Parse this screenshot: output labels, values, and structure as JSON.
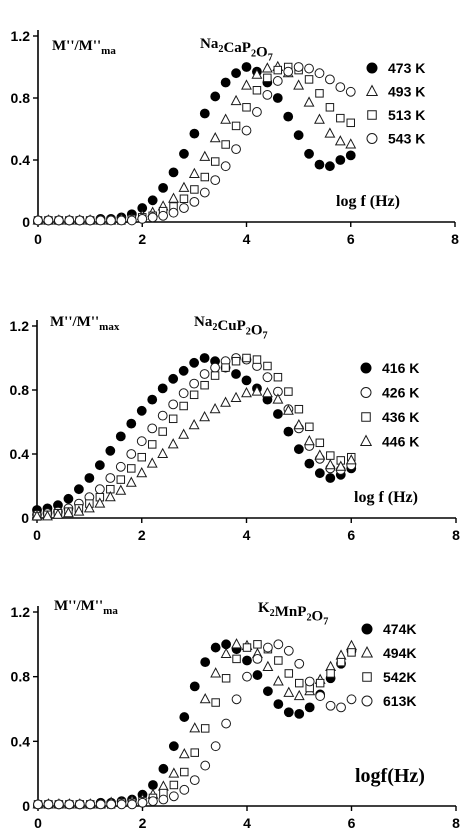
{
  "chart_data": [
    {
      "type": "scatter",
      "title": "Na₂CaP₂O₇",
      "ylabel": "M''/M''ma",
      "xlabel": "log  f (Hz)",
      "xlim": [
        0,
        8
      ],
      "ylim": [
        0,
        1.2
      ],
      "x_ticks": [
        "0",
        "2",
        "4",
        "6",
        "8"
      ],
      "y_ticks": [
        "0",
        "0.4",
        "0.8",
        "1.2"
      ],
      "legend_position": "right",
      "series": [
        {
          "name": "473 K",
          "marker": "filled-circle",
          "x": [
            0,
            0.2,
            0.4,
            0.6,
            0.8,
            1.0,
            1.2,
            1.4,
            1.6,
            1.8,
            2.0,
            2.2,
            2.4,
            2.6,
            2.8,
            3.0,
            3.2,
            3.4,
            3.6,
            3.8,
            4.0,
            4.2,
            4.4,
            4.6,
            4.8,
            5.0,
            5.2,
            5.4,
            5.6,
            5.8,
            6.0
          ],
          "y": [
            0.01,
            0.01,
            0.01,
            0.01,
            0.01,
            0.01,
            0.02,
            0.02,
            0.03,
            0.05,
            0.09,
            0.14,
            0.22,
            0.32,
            0.44,
            0.57,
            0.7,
            0.81,
            0.9,
            0.96,
            1.0,
            0.97,
            0.9,
            0.8,
            0.68,
            0.56,
            0.44,
            0.37,
            0.36,
            0.4,
            0.43
          ]
        },
        {
          "name": "493 K",
          "marker": "open-triangle",
          "x": [
            0,
            0.2,
            0.4,
            0.6,
            0.8,
            1.0,
            1.2,
            1.4,
            1.6,
            1.8,
            2.0,
            2.2,
            2.4,
            2.6,
            2.8,
            3.0,
            3.2,
            3.4,
            3.6,
            3.8,
            4.0,
            4.2,
            4.4,
            4.6,
            4.8,
            5.0,
            5.2,
            5.4,
            5.6,
            5.8,
            6.0
          ],
          "y": [
            0.01,
            0.01,
            0.01,
            0.01,
            0.01,
            0.01,
            0.01,
            0.01,
            0.02,
            0.02,
            0.04,
            0.06,
            0.1,
            0.15,
            0.22,
            0.31,
            0.42,
            0.54,
            0.66,
            0.78,
            0.88,
            0.95,
            0.99,
            1.0,
            0.96,
            0.88,
            0.77,
            0.66,
            0.57,
            0.52,
            0.5
          ]
        },
        {
          "name": "513 K",
          "marker": "open-square",
          "x": [
            0,
            0.2,
            0.4,
            0.6,
            0.8,
            1.0,
            1.2,
            1.4,
            1.6,
            1.8,
            2.0,
            2.2,
            2.4,
            2.6,
            2.8,
            3.0,
            3.2,
            3.4,
            3.6,
            3.8,
            4.0,
            4.2,
            4.4,
            4.6,
            4.8,
            5.0,
            5.2,
            5.4,
            5.6,
            5.8,
            6.0
          ],
          "y": [
            0.01,
            0.01,
            0.01,
            0.01,
            0.01,
            0.01,
            0.01,
            0.01,
            0.01,
            0.02,
            0.03,
            0.04,
            0.07,
            0.1,
            0.15,
            0.21,
            0.29,
            0.39,
            0.5,
            0.62,
            0.74,
            0.85,
            0.93,
            0.98,
            1.0,
            0.98,
            0.92,
            0.83,
            0.74,
            0.67,
            0.64
          ]
        },
        {
          "name": "543 K",
          "marker": "open-circle",
          "x": [
            0,
            0.2,
            0.4,
            0.6,
            0.8,
            1.0,
            1.2,
            1.4,
            1.6,
            1.8,
            2.0,
            2.2,
            2.4,
            2.6,
            2.8,
            3.0,
            3.2,
            3.4,
            3.6,
            3.8,
            4.0,
            4.2,
            4.4,
            4.6,
            4.8,
            5.0,
            5.2,
            5.4,
            5.6,
            5.8,
            6.0
          ],
          "y": [
            0.01,
            0.01,
            0.01,
            0.01,
            0.01,
            0.01,
            0.01,
            0.01,
            0.01,
            0.01,
            0.02,
            0.03,
            0.04,
            0.06,
            0.09,
            0.13,
            0.19,
            0.27,
            0.36,
            0.47,
            0.59,
            0.71,
            0.82,
            0.91,
            0.97,
            1.0,
            0.99,
            0.96,
            0.92,
            0.87,
            0.84
          ]
        }
      ]
    },
    {
      "type": "scatter",
      "title": "Na₂CuP₂O₇",
      "ylabel": "M''/M''max",
      "xlabel": "log f (Hz)",
      "xlim": [
        0,
        8
      ],
      "ylim": [
        0,
        1.2
      ],
      "x_ticks": [
        "0",
        "2",
        "4",
        "6",
        "8"
      ],
      "y_ticks": [
        "0",
        "0.4",
        "0.8",
        "1.2"
      ],
      "legend_position": "right",
      "series": [
        {
          "name": "416 K",
          "marker": "filled-circle",
          "x": [
            0,
            0.2,
            0.4,
            0.6,
            0.8,
            1.0,
            1.2,
            1.4,
            1.6,
            1.8,
            2.0,
            2.2,
            2.4,
            2.6,
            2.8,
            3.0,
            3.2,
            3.4,
            3.6,
            3.8,
            4.0,
            4.2,
            4.4,
            4.6,
            4.8,
            5.0,
            5.2,
            5.4,
            5.6,
            5.8,
            6.0
          ],
          "y": [
            0.05,
            0.06,
            0.08,
            0.12,
            0.18,
            0.25,
            0.33,
            0.42,
            0.51,
            0.59,
            0.67,
            0.74,
            0.81,
            0.87,
            0.92,
            0.97,
            1.0,
            0.98,
            0.94,
            0.9,
            0.86,
            0.81,
            0.74,
            0.65,
            0.54,
            0.43,
            0.34,
            0.28,
            0.25,
            0.27,
            0.31
          ]
        },
        {
          "name": "426 K",
          "marker": "open-circle",
          "x": [
            0,
            0.2,
            0.4,
            0.6,
            0.8,
            1.0,
            1.2,
            1.4,
            1.6,
            1.8,
            2.0,
            2.2,
            2.4,
            2.6,
            2.8,
            3.0,
            3.2,
            3.4,
            3.6,
            3.8,
            4.0,
            4.2,
            4.4,
            4.6,
            4.8,
            5.0,
            5.2,
            5.4,
            5.6,
            5.8,
            6.0
          ],
          "y": [
            0.02,
            0.03,
            0.04,
            0.06,
            0.09,
            0.13,
            0.18,
            0.25,
            0.32,
            0.4,
            0.48,
            0.56,
            0.64,
            0.71,
            0.78,
            0.84,
            0.9,
            0.94,
            0.98,
            1.0,
            0.99,
            0.95,
            0.88,
            0.79,
            0.68,
            0.56,
            0.45,
            0.37,
            0.31,
            0.3,
            0.33
          ]
        },
        {
          "name": "436 K",
          "marker": "open-square",
          "x": [
            0,
            0.2,
            0.4,
            0.6,
            0.8,
            1.0,
            1.2,
            1.4,
            1.6,
            1.8,
            2.0,
            2.2,
            2.4,
            2.6,
            2.8,
            3.0,
            3.2,
            3.4,
            3.6,
            3.8,
            4.0,
            4.2,
            4.4,
            4.6,
            4.8,
            5.0,
            5.2,
            5.4,
            5.6,
            5.8,
            6.0
          ],
          "y": [
            0.01,
            0.02,
            0.03,
            0.04,
            0.06,
            0.09,
            0.13,
            0.18,
            0.24,
            0.31,
            0.38,
            0.46,
            0.54,
            0.62,
            0.7,
            0.77,
            0.83,
            0.89,
            0.94,
            0.98,
            1.0,
            0.99,
            0.95,
            0.88,
            0.79,
            0.68,
            0.57,
            0.47,
            0.39,
            0.36,
            0.38
          ]
        },
        {
          "name": "446 K",
          "marker": "open-triangle",
          "x": [
            0,
            0.2,
            0.4,
            0.6,
            0.8,
            1.0,
            1.2,
            1.4,
            1.6,
            1.8,
            2.0,
            2.2,
            2.4,
            2.6,
            2.8,
            3.0,
            3.2,
            3.4,
            3.6,
            3.8,
            4.0,
            4.2,
            4.4,
            4.6,
            4.8,
            5.0,
            5.2,
            5.4,
            5.6,
            5.8,
            6.0
          ],
          "y": [
            0.01,
            0.01,
            0.02,
            0.03,
            0.04,
            0.06,
            0.09,
            0.13,
            0.17,
            0.22,
            0.28,
            0.34,
            0.4,
            0.46,
            0.52,
            0.58,
            0.63,
            0.68,
            0.72,
            0.75,
            0.78,
            0.79,
            0.78,
            0.74,
            0.67,
            0.58,
            0.48,
            0.39,
            0.33,
            0.32,
            0.36
          ]
        }
      ]
    },
    {
      "type": "scatter",
      "title": "K₂MnP₂O₇",
      "ylabel": "M''/M''ma",
      "xlabel": "logf(Hz)",
      "xlim": [
        0,
        8
      ],
      "ylim": [
        0,
        1.2
      ],
      "x_ticks": [
        "0",
        "2",
        "4",
        "6",
        "8"
      ],
      "y_ticks": [
        "0",
        "0.4",
        "0.8",
        "1.2"
      ],
      "legend_position": "right",
      "series": [
        {
          "name": "474K",
          "marker": "filled-circle",
          "x": [
            0,
            0.2,
            0.4,
            0.6,
            0.8,
            1.0,
            1.2,
            1.4,
            1.6,
            1.8,
            2.0,
            2.2,
            2.4,
            2.6,
            2.8,
            3.0,
            3.2,
            3.4,
            3.6,
            3.8,
            4.0,
            4.2,
            4.4,
            4.6,
            4.8,
            5.0,
            5.2,
            5.4,
            5.6,
            5.8,
            6.0
          ],
          "y": [
            0.01,
            0.01,
            0.01,
            0.01,
            0.01,
            0.01,
            0.02,
            0.02,
            0.03,
            0.04,
            0.07,
            0.13,
            0.23,
            0.37,
            0.55,
            0.74,
            0.89,
            0.98,
            1.0,
            0.97,
            0.9,
            0.81,
            0.71,
            0.63,
            0.58,
            0.57,
            0.61,
            0.69,
            0.79,
            0.88,
            0.96
          ]
        },
        {
          "name": "494K",
          "marker": "open-triangle",
          "x": [
            0,
            0.2,
            0.4,
            0.6,
            0.8,
            1.0,
            1.2,
            1.4,
            1.6,
            1.8,
            2.0,
            2.2,
            2.4,
            2.6,
            2.8,
            3.0,
            3.2,
            3.4,
            3.6,
            3.8,
            4.0,
            4.2,
            4.4,
            4.6,
            4.8,
            5.0,
            5.2,
            5.4,
            5.6,
            5.8,
            6.0
          ],
          "y": [
            0.01,
            0.01,
            0.01,
            0.01,
            0.01,
            0.01,
            0.01,
            0.02,
            0.02,
            0.03,
            0.04,
            0.07,
            0.12,
            0.2,
            0.32,
            0.48,
            0.66,
            0.82,
            0.94,
            1.0,
            0.99,
            0.94,
            0.86,
            0.77,
            0.7,
            0.68,
            0.71,
            0.78,
            0.86,
            0.93,
            0.99
          ]
        },
        {
          "name": "542K",
          "marker": "open-square",
          "x": [
            0,
            0.2,
            0.4,
            0.6,
            0.8,
            1.0,
            1.2,
            1.4,
            1.6,
            1.8,
            2.0,
            2.2,
            2.4,
            2.6,
            2.8,
            3.0,
            3.2,
            3.4,
            3.6,
            3.8,
            4.0,
            4.2,
            4.4,
            4.6,
            4.8,
            5.0,
            5.2,
            5.4,
            5.6,
            5.8,
            6.0
          ],
          "y": [
            0.01,
            0.01,
            0.01,
            0.01,
            0.01,
            0.01,
            0.01,
            0.01,
            0.02,
            0.02,
            0.03,
            0.05,
            0.08,
            0.13,
            0.21,
            0.33,
            0.48,
            0.64,
            0.79,
            0.91,
            0.98,
            1.0,
            0.97,
            0.9,
            0.82,
            0.76,
            0.73,
            0.76,
            0.82,
            0.89,
            0.95
          ]
        },
        {
          "name": "613K",
          "marker": "open-circle",
          "x": [
            0,
            0.2,
            0.4,
            0.6,
            0.8,
            1.0,
            1.2,
            1.4,
            1.6,
            1.8,
            2.0,
            2.2,
            2.4,
            2.6,
            2.8,
            3.0,
            3.2,
            3.4,
            3.6,
            3.8,
            4.0,
            4.2,
            4.4,
            4.6,
            4.8,
            5.0,
            5.2,
            5.4,
            5.6,
            5.8,
            6.0
          ],
          "y": [
            0.01,
            0.01,
            0.01,
            0.01,
            0.01,
            0.01,
            0.01,
            0.01,
            0.01,
            0.01,
            0.02,
            0.03,
            0.04,
            0.06,
            0.1,
            0.16,
            0.25,
            0.37,
            0.51,
            0.66,
            0.8,
            0.91,
            0.98,
            1.0,
            0.96,
            0.88,
            0.77,
            0.68,
            0.62,
            0.61,
            0.66
          ]
        }
      ]
    }
  ]
}
